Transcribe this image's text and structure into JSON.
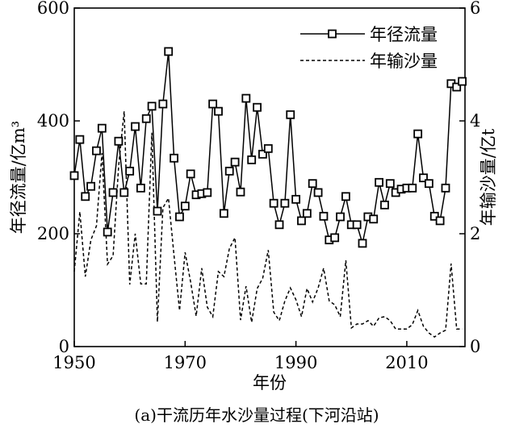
{
  "chart_data": {
    "type": "line",
    "caption": "(a)干流历年水沙量过程(下河沿站)",
    "xlabel": "年份",
    "ylabel_left": "年径流量/亿m³",
    "ylabel_right": "年输沙量/亿t",
    "xlim": [
      1950,
      2020.5
    ],
    "ylim_left": [
      0,
      600
    ],
    "ylim_right": [
      0,
      6
    ],
    "xticks": [
      "1950",
      "1970",
      "1990",
      "2010"
    ],
    "yticks_left": [
      "0",
      "200",
      "400",
      "600"
    ],
    "yticks_right": [
      "0",
      "2",
      "4",
      "6"
    ],
    "legend_position": "top-right",
    "x_start": 1950,
    "series": [
      {
        "name": "年径流量",
        "axis": "left",
        "style": "solid-square-markers",
        "values": [
          303,
          367,
          266,
          284,
          347,
          387,
          203,
          273,
          364,
          273,
          311,
          390,
          281,
          404,
          426,
          240,
          430,
          523,
          334,
          230,
          249,
          306,
          269,
          271,
          273,
          430,
          417,
          236,
          311,
          327,
          274,
          440,
          331,
          424,
          341,
          351,
          254,
          216,
          254,
          411,
          261,
          223,
          236,
          289,
          273,
          231,
          189,
          193,
          230,
          266,
          216,
          216,
          183,
          230,
          226,
          291,
          251,
          289,
          273,
          279,
          281,
          281,
          377,
          299,
          289,
          231,
          223,
          281,
          466,
          460,
          470
        ]
      },
      {
        "name": "年输沙量",
        "axis": "right",
        "style": "dashed",
        "values": [
          1.33,
          2.39,
          1.24,
          1.89,
          2.14,
          3.43,
          1.46,
          1.61,
          3.19,
          4.17,
          1.1,
          2.0,
          1.11,
          1.11,
          3.79,
          0.44,
          2.46,
          2.63,
          1.61,
          0.64,
          1.67,
          1.14,
          0.54,
          1.39,
          0.7,
          0.53,
          1.33,
          1.24,
          1.74,
          1.93,
          0.47,
          1.07,
          0.43,
          1.03,
          1.21,
          1.71,
          0.61,
          0.46,
          0.81,
          1.04,
          0.83,
          0.53,
          1.03,
          0.79,
          1.04,
          1.39,
          0.81,
          0.74,
          0.53,
          1.53,
          0.33,
          0.4,
          0.4,
          0.46,
          0.36,
          0.51,
          0.53,
          0.46,
          0.31,
          0.31,
          0.31,
          0.39,
          0.64,
          0.36,
          0.24,
          0.17,
          0.24,
          0.29,
          1.47,
          0.31,
          0.31
        ]
      }
    ]
  }
}
